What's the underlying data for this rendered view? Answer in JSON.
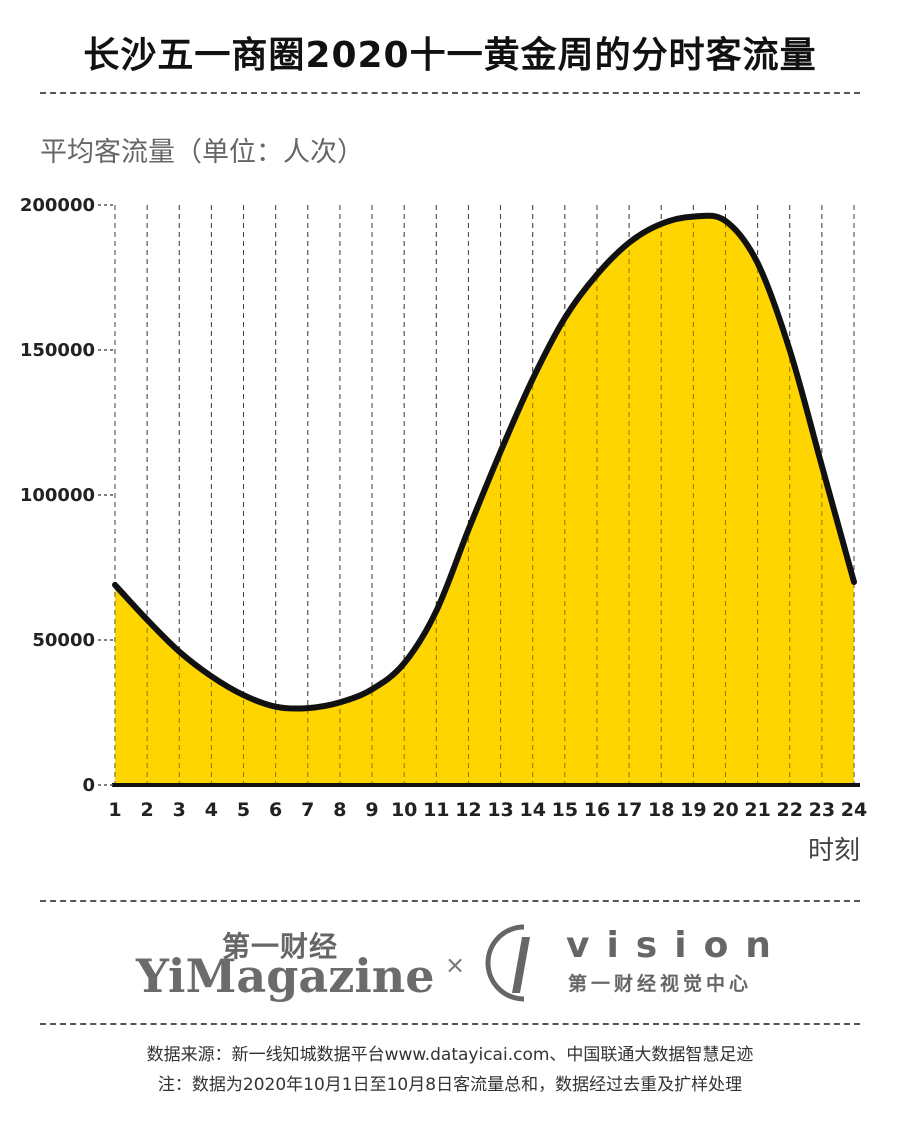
{
  "header": {
    "title": "长沙五一商圈2020十一黄金周的分时客流量"
  },
  "chart_data": {
    "type": "area",
    "title": "长沙五一商圈2020十一黄金周的分时客流量",
    "ylabel": "平均客流量（单位：人次）",
    "xlabel": "时刻",
    "x": [
      1,
      2,
      3,
      4,
      5,
      6,
      7,
      8,
      9,
      10,
      11,
      12,
      13,
      14,
      15,
      16,
      17,
      18,
      19,
      20,
      21,
      22,
      23,
      24
    ],
    "values": [
      69000,
      57000,
      46000,
      37500,
      31000,
      27000,
      26500,
      28500,
      33000,
      42000,
      60000,
      88000,
      115000,
      140000,
      161000,
      176000,
      187000,
      193500,
      196000,
      194500,
      180000,
      150000,
      110000,
      70000
    ],
    "ylim": [
      0,
      200000
    ],
    "yticks": [
      "0",
      "50000",
      "100000",
      "150000",
      "200000"
    ],
    "xticks": [
      "1",
      "2",
      "3",
      "4",
      "5",
      "6",
      "7",
      "8",
      "9",
      "10",
      "11",
      "12",
      "13",
      "14",
      "15",
      "16",
      "17",
      "18",
      "19",
      "20",
      "21",
      "22",
      "23",
      "24"
    ],
    "grid": "vertical-dashed",
    "fill_color": "#FFD500",
    "line_color": "#111111"
  },
  "logos": {
    "yi_cn": "第一财经",
    "yi_en": "YiMagazine",
    "times": "×",
    "v_en": "vision",
    "v_cn": "第一财经视觉中心"
  },
  "footer": {
    "source": "数据来源：新一线知城数据平台www.datayicai.com、中国联通大数据智慧足迹",
    "note": "注：数据为2020年10月1日至10月8日客流量总和，数据经过去重及扩样处理"
  }
}
